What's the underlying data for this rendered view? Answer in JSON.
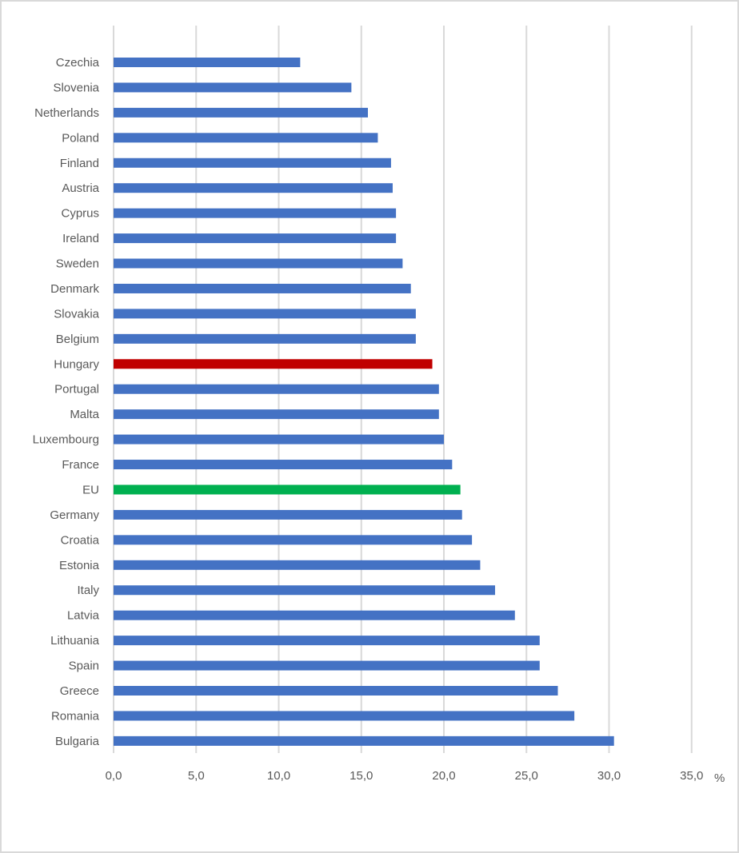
{
  "chart_data": {
    "type": "bar",
    "orientation": "horizontal",
    "title": "",
    "xlabel": "%",
    "ylabel": "",
    "xlim": [
      0,
      35
    ],
    "x_ticks": [
      "0,0",
      "5,0",
      "10,0",
      "15,0",
      "20,0",
      "25,0",
      "30,0",
      "35,0"
    ],
    "x_tick_values": [
      0,
      5,
      10,
      15,
      20,
      25,
      30,
      35
    ],
    "grid": true,
    "legend": "none",
    "categories": [
      "Czechia",
      "Slovenia",
      "Netherlands",
      "Poland",
      "Finland",
      "Austria",
      "Cyprus",
      "Ireland",
      "Sweden",
      "Denmark",
      "Slovakia",
      "Belgium",
      "Hungary",
      "Portugal",
      "Malta",
      "Luxembourg",
      "France",
      "EU",
      "Germany",
      "Croatia",
      "Estonia",
      "Italy",
      "Latvia",
      "Lithuania",
      "Spain",
      "Greece",
      "Romania",
      "Bulgaria"
    ],
    "values": [
      11.3,
      14.4,
      15.4,
      16.0,
      16.8,
      16.9,
      17.1,
      17.1,
      17.5,
      18.0,
      18.3,
      18.3,
      19.3,
      19.7,
      19.7,
      20.0,
      20.5,
      21.0,
      21.1,
      21.7,
      22.2,
      23.1,
      24.3,
      25.8,
      25.8,
      26.9,
      27.9,
      30.3
    ],
    "colors": {
      "default": "#4472c4",
      "highlight": {
        "Hungary": "#c00000",
        "EU": "#00b050"
      },
      "grid": "#d9d9d9",
      "text": "#595959"
    }
  }
}
